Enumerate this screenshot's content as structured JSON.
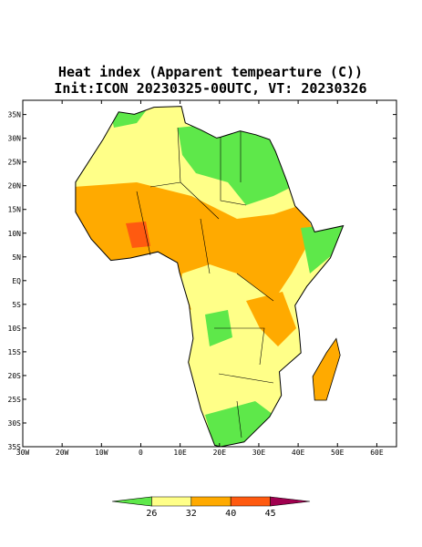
{
  "header": {
    "title": "Heat index (Apparent tempearture (C))",
    "subtitle": "Init:ICON 20230325-00UTC, VT: 20230326"
  },
  "map": {
    "lonlim": [
      -30,
      65
    ],
    "latlim": [
      -35,
      38
    ],
    "lat_ticks": [
      {
        "value": 35,
        "label": "35N"
      },
      {
        "value": 30,
        "label": "30N"
      },
      {
        "value": 25,
        "label": "25N"
      },
      {
        "value": 20,
        "label": "20N"
      },
      {
        "value": 15,
        "label": "15N"
      },
      {
        "value": 10,
        "label": "10N"
      },
      {
        "value": 5,
        "label": "5N"
      },
      {
        "value": 0,
        "label": "EQ"
      },
      {
        "value": -5,
        "label": "5S"
      },
      {
        "value": -10,
        "label": "10S"
      },
      {
        "value": -15,
        "label": "15S"
      },
      {
        "value": -20,
        "label": "20S"
      },
      {
        "value": -25,
        "label": "25S"
      },
      {
        "value": -30,
        "label": "30S"
      },
      {
        "value": -35,
        "label": "35S"
      }
    ],
    "lon_ticks": [
      {
        "value": -30,
        "label": "30W"
      },
      {
        "value": -20,
        "label": "20W"
      },
      {
        "value": -10,
        "label": "10W"
      },
      0,
      {
        "value": 10,
        "label": "10E"
      },
      {
        "value": 20,
        "label": "20E"
      },
      {
        "value": 30,
        "label": "30E"
      },
      {
        "value": 40,
        "label": "40E"
      },
      {
        "value": 50,
        "label": "50E"
      },
      {
        "value": 60,
        "label": "60E"
      }
    ]
  },
  "colorbar": {
    "levels": [
      26,
      32,
      40,
      45
    ],
    "colors": [
      "#5ee84a",
      "#ffff88",
      "#ffaa00",
      "#ff5a10",
      "#a0004f"
    ]
  }
}
